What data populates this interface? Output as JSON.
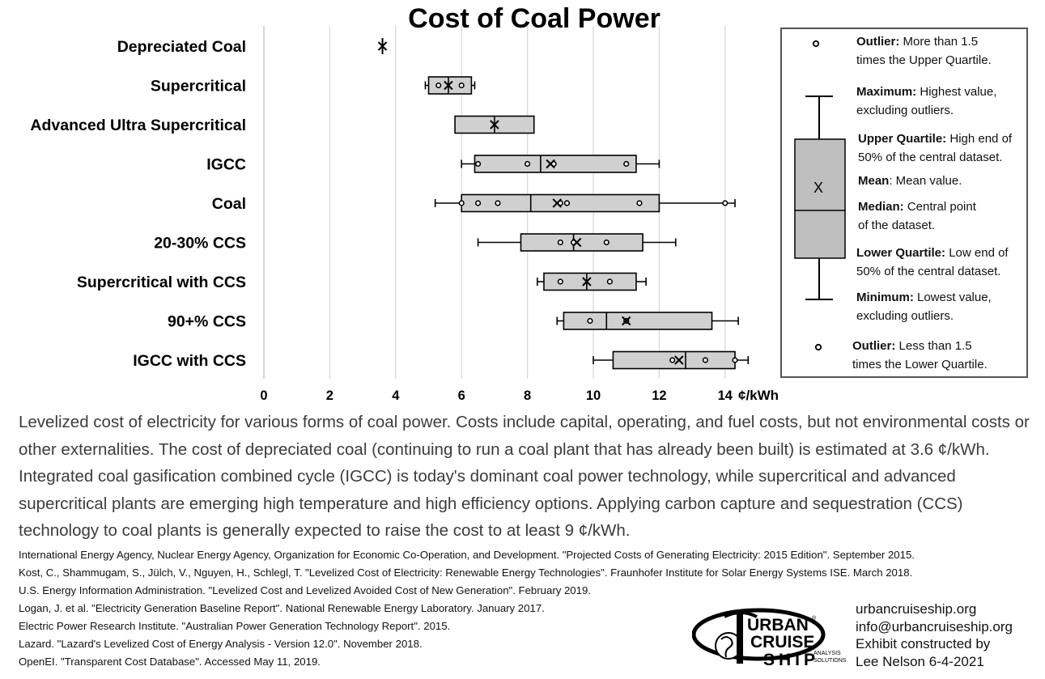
{
  "chart_data": {
    "type": "boxplot",
    "title": "Cost of Coal Power",
    "xlabel": "¢/kWh",
    "xlim": [
      0,
      15
    ],
    "xticks": [
      "0",
      "2",
      "4",
      "6",
      "8",
      "10",
      "12",
      "14"
    ],
    "grid": true,
    "orientation": "horizontal",
    "series": [
      {
        "name": "Depreciated Coal",
        "min": 3.6,
        "q1": 3.6,
        "median": 3.6,
        "q3": 3.6,
        "max": 3.6,
        "mean": 3.6,
        "points": [],
        "outliers": []
      },
      {
        "name": "Supercritical",
        "min": 4.9,
        "q1": 5.0,
        "median": 5.6,
        "q3": 6.3,
        "max": 6.4,
        "mean": 5.6,
        "points": [
          5.3,
          6.0
        ],
        "outliers": []
      },
      {
        "name": "Advanced Ultra Supercritical",
        "min": 5.8,
        "q1": 5.8,
        "median": 7.0,
        "q3": 8.2,
        "max": 8.2,
        "mean": 7.0,
        "points": [],
        "outliers": []
      },
      {
        "name": "IGCC",
        "min": 6.0,
        "q1": 6.4,
        "median": 8.4,
        "q3": 11.3,
        "max": 12.0,
        "mean": 8.7,
        "points": [
          6.5,
          8.0,
          8.8,
          11.0
        ],
        "outliers": []
      },
      {
        "name": "Coal",
        "min": 5.2,
        "q1": 6.0,
        "median": 8.1,
        "q3": 12.0,
        "max": 14.3,
        "mean": 8.9,
        "points": [
          6.0,
          6.5,
          7.1,
          9.0,
          9.2,
          11.4
        ],
        "outliers": [
          14.0
        ]
      },
      {
        "name": "20-30% CCS",
        "min": 6.5,
        "q1": 7.8,
        "median": 9.4,
        "q3": 11.5,
        "max": 12.5,
        "mean": 9.5,
        "points": [
          9.0,
          9.4,
          10.4
        ],
        "outliers": []
      },
      {
        "name": "Supercritical with CCS",
        "min": 8.3,
        "q1": 8.5,
        "median": 9.8,
        "q3": 11.3,
        "max": 11.6,
        "mean": 9.8,
        "points": [
          9.0,
          10.5
        ],
        "outliers": []
      },
      {
        "name": "90+% CCS",
        "min": 8.9,
        "q1": 9.1,
        "median": 10.4,
        "q3": 13.6,
        "max": 14.4,
        "mean": 11.0,
        "points": [
          9.9,
          11.0
        ],
        "outliers": []
      },
      {
        "name": "IGCC with CCS",
        "min": 10.0,
        "q1": 10.6,
        "median": 12.8,
        "q3": 14.3,
        "max": 14.7,
        "mean": 12.6,
        "points": [
          12.4,
          13.4,
          14.3
        ],
        "outliers": []
      }
    ]
  },
  "legend": {
    "outlier_high_label": "Outlier:",
    "outlier_high_desc": " More than 1.5",
    "outlier_high_desc2": "times the Upper Quartile.",
    "maximum_label": "Maximum:",
    "maximum_desc": " Highest value,",
    "maximum_desc2": "excluding outliers.",
    "upper_quartile_label": "Upper Quartile:",
    "upper_quartile_desc": " High end of",
    "upper_quartile_desc2": "50% of the central dataset.",
    "mean_label": "Mean",
    "mean_desc": ": Mean value.",
    "median_label": "Median:",
    "median_desc": " Central point",
    "median_desc2": "of the dataset.",
    "lower_quartile_label": "Lower Quartile:",
    "lower_quartile_desc": " Low end of",
    "lower_quartile_desc2": "50% of the central dataset.",
    "minimum_label": "Minimum:",
    "minimum_desc": " Lowest value,",
    "minimum_desc2": "excluding outliers.",
    "outlier_low_label": "Outlier:",
    "outlier_low_desc": " Less than 1.5",
    "outlier_low_desc2": "times the Lower Quartile.",
    "mean_symbol": "X"
  },
  "description": "Levelized cost of electricity for various forms of coal power. Costs include capital, operating, and fuel costs, but not environmental costs or other externalities. The cost of depreciated coal (continuing to run a coal plant that has already been built) is estimated at 3.6 ¢/kWh. Integrated coal gasification combined cycle (IGCC) is today's dominant coal power technology, while supercritical and advanced supercritical plants are emerging high temperature and high efficiency options. Applying carbon capture and sequestration (CCS) technology to coal plants is generally expected to raise the cost to at least 9 ¢/kWh.",
  "references": [
    "International Energy Agency, Nuclear Energy Agency, Organization for Economic Co-Operation, and Development. \"Projected Costs of Generating Electricity: 2015 Edition\". September 2015.",
    "Kost, C., Shammugam, S., Jülch, V., Nguyen, H., Schlegl, T. \"Levelized Cost of Electricity: Renewable Energy Technologies\". Fraunhofer Institute for Solar Energy Systems ISE. March 2018.",
    "U.S. Energy Information Administration. \"Levelized Cost and Levelized Avoided Cost of New Generation\". February 2019.",
    "Logan, J. et al. \"Electricity Generation Baseline Report\". National Renewable Energy Laboratory. January 2017.",
    "Electric Power Research Institute. \"Australian Power Generation Technology Report\". 2015.",
    "Lazard. \"Lazard's Levelized Cost of Energy Analysis - Version 12.0\". November 2018.",
    "OpenEI. \"Transparent Cost Database\". Accessed May 11, 2019."
  ],
  "logo": {
    "line1": "URBAN",
    "line2": "CRUISE",
    "line3": "SHIP",
    "sub1": "ANALYSIS",
    "sub2": "SOLUTIONS",
    "reg": "®"
  },
  "contact": {
    "website": "urbancruiseship.org",
    "email": "info@urbancruiseship.org",
    "credit1": "Exhibit constructed by",
    "credit2": "Lee Nelson 6-4-2021"
  },
  "colors": {
    "box_fill": "#d0d0d0",
    "grid": "#d9d9d9",
    "text_gray": "#3c3c3c"
  }
}
